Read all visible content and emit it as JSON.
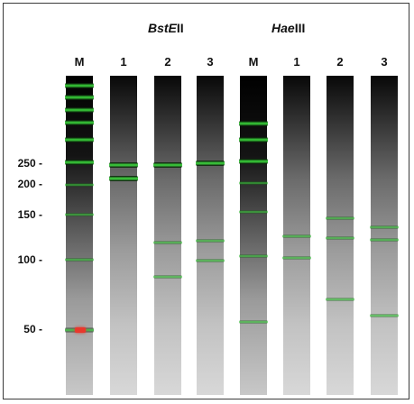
{
  "enzymes": [
    {
      "italic": "BstE",
      "roman": "II"
    },
    {
      "italic": "Hae",
      "roman": "III"
    }
  ],
  "size_markers": [
    "250",
    "200",
    "150",
    "100",
    "50"
  ],
  "lanes": [
    {
      "label": "M",
      "bands": [
        {
          "kind": "ladder",
          "strong": true
        },
        {
          "kind": "ladder",
          "strong": true
        },
        {
          "kind": "ladder",
          "strong": true
        },
        {
          "kind": "ladder",
          "strong": true
        },
        {
          "kind": "ladder",
          "strong": true
        },
        {
          "kind": "ladder",
          "strong": true
        },
        {
          "kind": "ladder",
          "strong": false
        },
        {
          "kind": "ladder",
          "strong": false
        },
        {
          "kind": "ladder",
          "strong": false
        },
        {
          "kind": "ladder",
          "strong": false
        },
        {
          "kind": "red",
          "strong": true
        }
      ]
    },
    {
      "label": "1",
      "bands": [
        {
          "kind": "product",
          "strong": true
        },
        {
          "kind": "product",
          "strong": true
        }
      ]
    },
    {
      "label": "2",
      "bands": [
        {
          "kind": "product",
          "strong": true
        },
        {
          "kind": "product",
          "strong": false
        },
        {
          "kind": "product",
          "strong": false
        }
      ]
    },
    {
      "label": "3",
      "bands": [
        {
          "kind": "product",
          "strong": true
        },
        {
          "kind": "product",
          "strong": false
        },
        {
          "kind": "product",
          "strong": false
        }
      ]
    },
    {
      "label": "M",
      "bands": [
        {
          "kind": "ladder",
          "strong": true
        },
        {
          "kind": "ladder",
          "strong": true
        },
        {
          "kind": "ladder",
          "strong": true
        },
        {
          "kind": "ladder",
          "strong": false
        },
        {
          "kind": "ladder",
          "strong": false
        },
        {
          "kind": "ladder",
          "strong": false
        },
        {
          "kind": "ladder",
          "strong": false
        }
      ]
    },
    {
      "label": "1",
      "bands": [
        {
          "kind": "product",
          "strong": false
        },
        {
          "kind": "product",
          "strong": false
        }
      ]
    },
    {
      "label": "2",
      "bands": [
        {
          "kind": "product",
          "strong": false
        },
        {
          "kind": "product",
          "strong": false
        },
        {
          "kind": "product",
          "strong": false
        }
      ]
    },
    {
      "label": "3",
      "bands": [
        {
          "kind": "product",
          "strong": false
        },
        {
          "kind": "product",
          "strong": false
        },
        {
          "kind": "product",
          "strong": false
        }
      ]
    }
  ],
  "colors": {
    "band_green": "#39d13a",
    "band_red": "#e8382c"
  }
}
